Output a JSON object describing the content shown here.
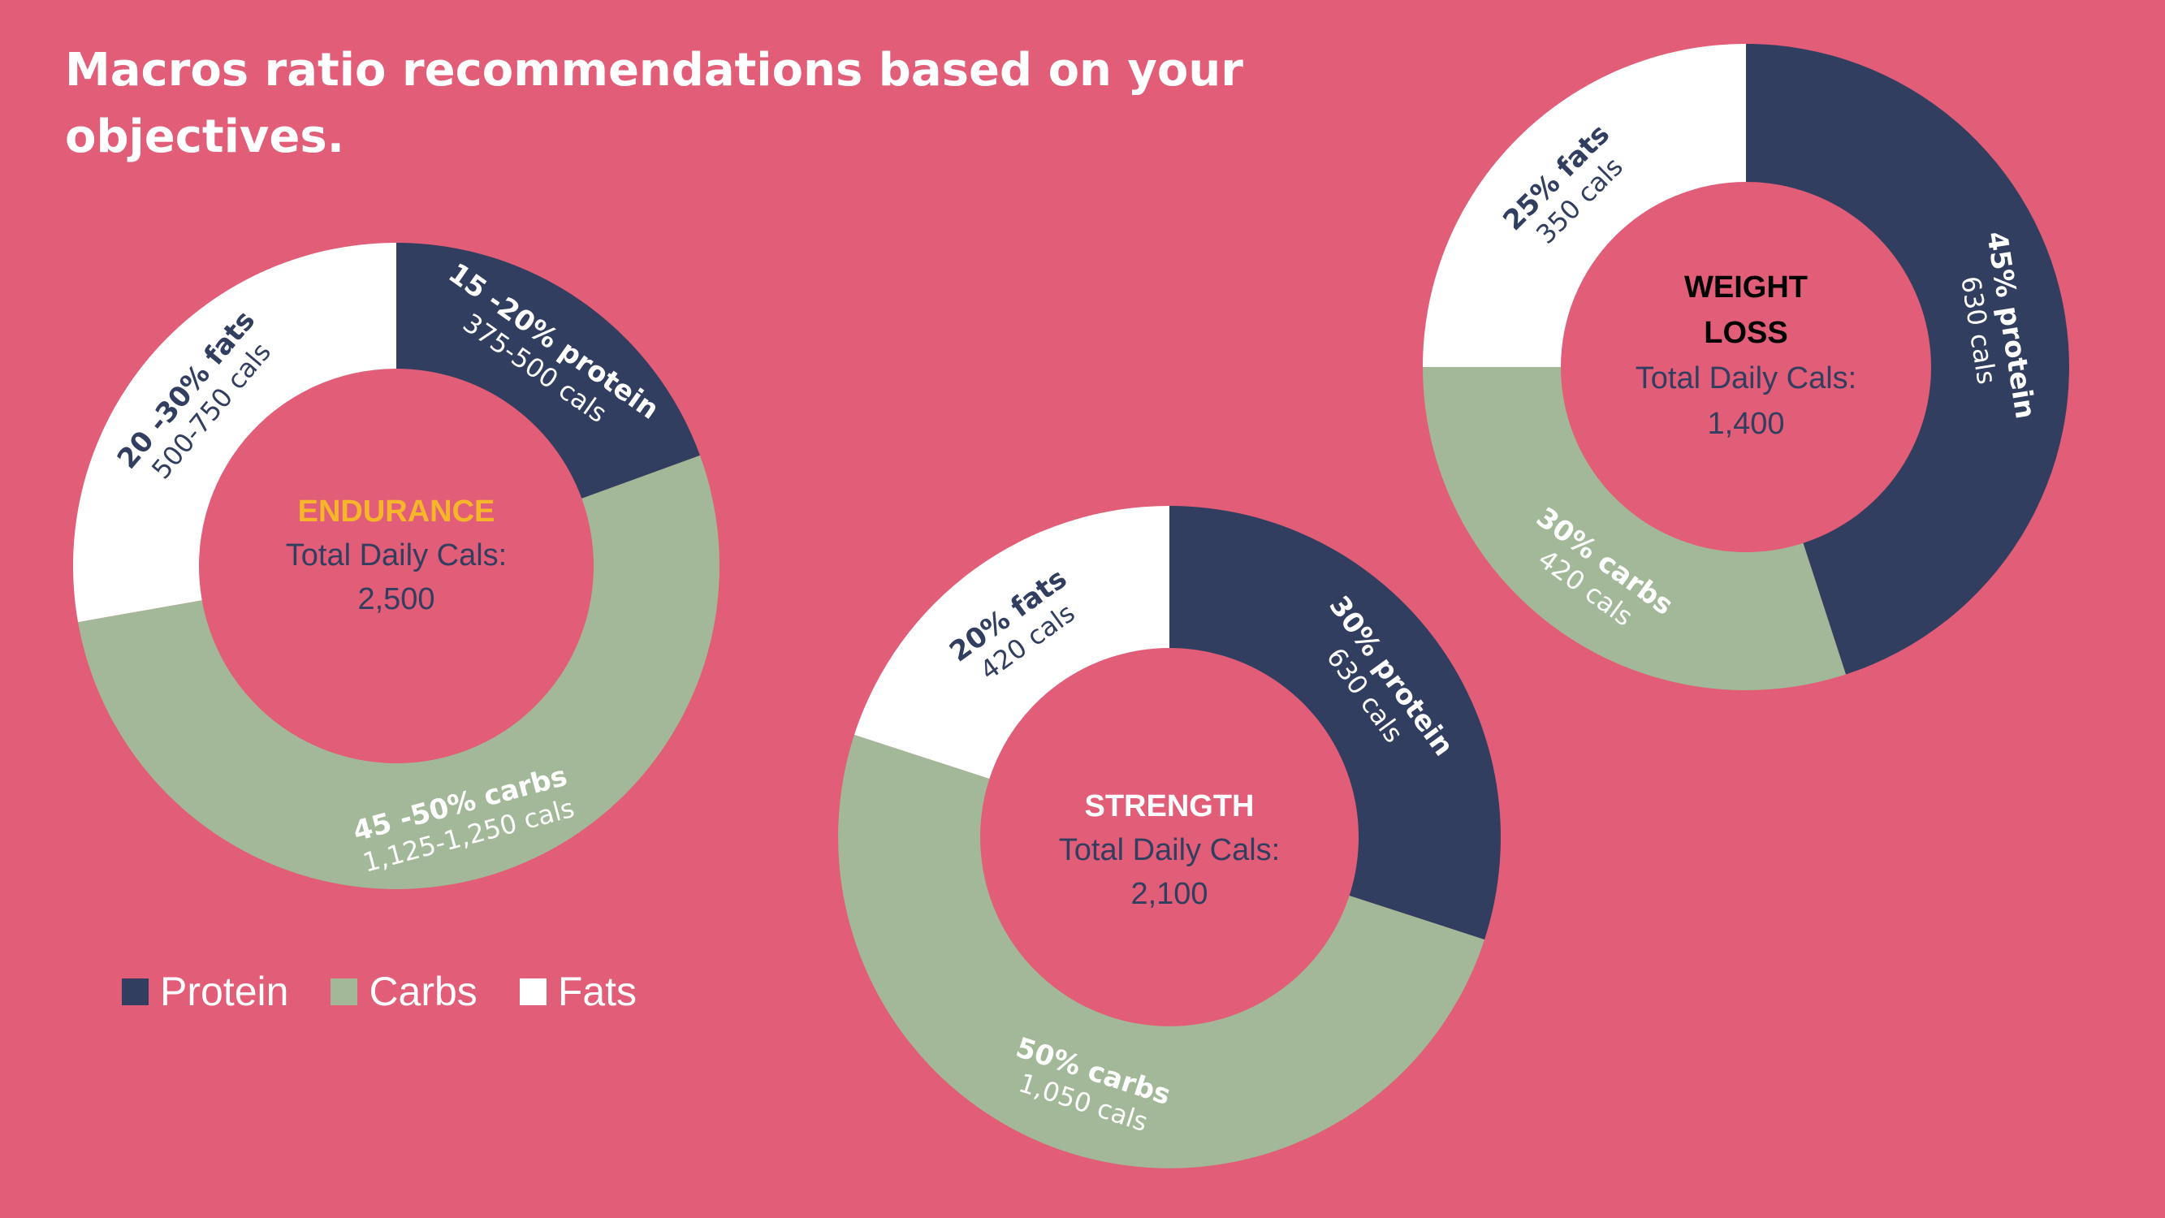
{
  "title": "Macros ratio recommendations based on your objectives.",
  "colors": {
    "background": "#e25d78",
    "protein": "#323e5f",
    "carbs": "#a2b898",
    "fats": "#ffffff",
    "center_text": "#323e5f",
    "endurance_title": "#f5b62a",
    "strength_title": "#ffffff",
    "weight_loss_title": "#000000"
  },
  "legend": [
    {
      "label": "Protein",
      "color": "#323e5f"
    },
    {
      "label": "Carbs",
      "color": "#a2b898"
    },
    {
      "label": "Fats",
      "color": "#ffffff"
    }
  ],
  "chart_data": [
    {
      "type": "donut",
      "title": "ENDURANCE",
      "center_lines": [
        "Total Daily Cals:",
        "2,500"
      ],
      "total_daily_cals": 2500,
      "slices": [
        {
          "name": "Protein",
          "percent": 17.5,
          "label": "15 -20% protein",
          "sub": "375-500 cals"
        },
        {
          "name": "Carbs",
          "percent": 47.5,
          "label": "45 -50% carbs",
          "sub": "1,125-1,250 cals"
        },
        {
          "name": "Fats",
          "percent": 25,
          "label": "20 -30% fats",
          "sub": "500-750 cals"
        }
      ]
    },
    {
      "type": "donut",
      "title": "STRENGTH",
      "center_lines": [
        "Total Daily Cals:",
        "2,100"
      ],
      "total_daily_cals": 2100,
      "slices": [
        {
          "name": "Protein",
          "percent": 30,
          "label": "30% protein",
          "sub": "630 cals"
        },
        {
          "name": "Carbs",
          "percent": 50,
          "label": "50% carbs",
          "sub": "1,050 cals"
        },
        {
          "name": "Fats",
          "percent": 20,
          "label": "20% fats",
          "sub": "420 cals"
        }
      ]
    },
    {
      "type": "donut",
      "title": "WEIGHT LOSS",
      "title_lines": [
        "WEIGHT",
        "LOSS"
      ],
      "center_lines": [
        "Total Daily Cals:",
        "1,400"
      ],
      "total_daily_cals": 1400,
      "slices": [
        {
          "name": "Protein",
          "percent": 45,
          "label": "45% protein",
          "sub": "630 cals"
        },
        {
          "name": "Carbs",
          "percent": 30,
          "label": "30% carbs",
          "sub": "420 cals"
        },
        {
          "name": "Fats",
          "percent": 25,
          "label": "25% fats",
          "sub": "350 cals"
        }
      ]
    }
  ]
}
